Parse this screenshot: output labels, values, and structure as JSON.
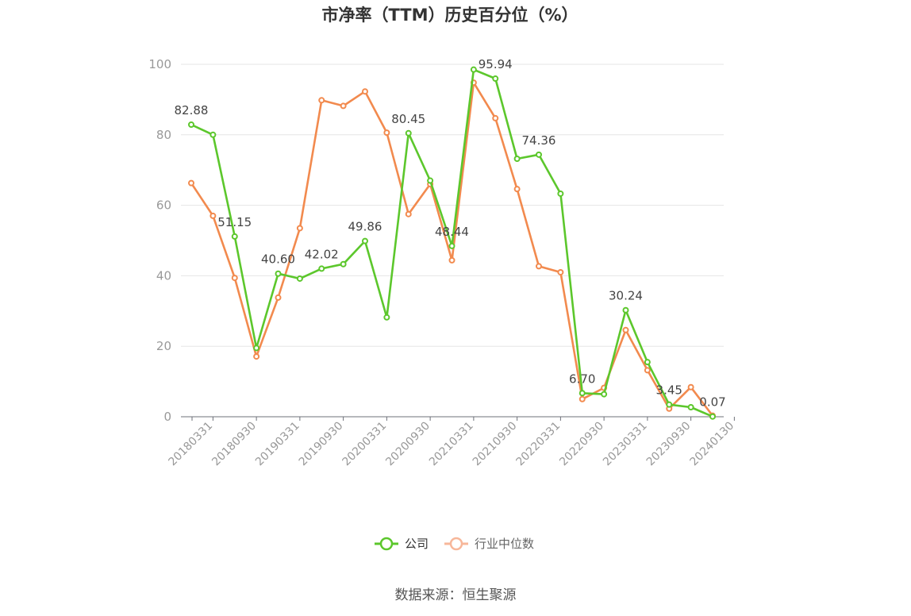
{
  "chart_data": {
    "type": "line",
    "title": "市净率（TTM）历史百分位（%）",
    "xlabel": "",
    "ylabel": "",
    "ylim": [
      0,
      100
    ],
    "yticks": [
      0,
      20,
      40,
      60,
      80,
      100
    ],
    "grid": true,
    "legend_position": "bottom",
    "x": [
      "20180331",
      "20180630",
      "20180930",
      "20181231",
      "20190331",
      "20190630",
      "20190930",
      "20191231",
      "20200331",
      "20200630",
      "20200930",
      "20201231",
      "20210331",
      "20210630",
      "20210930",
      "20211231",
      "20220331",
      "20220630",
      "20220930",
      "20221231",
      "20230331",
      "20230630",
      "20230930",
      "20231231",
      "20240130"
    ],
    "x_tick_labels": [
      "20180331",
      "20180930",
      "20190331",
      "20190930",
      "20200331",
      "20200930",
      "20210331",
      "20210930",
      "20220331",
      "20220930",
      "20230331",
      "20230930",
      "20240130"
    ],
    "series": [
      {
        "name": "公司",
        "color": "#5cc72c",
        "values": [
          82.88,
          80.0,
          51.15,
          19.5,
          40.6,
          39.2,
          42.02,
          43.3,
          49.86,
          28.2,
          80.45,
          67.0,
          48.44,
          98.5,
          95.94,
          73.2,
          74.36,
          63.3,
          6.7,
          6.4,
          30.24,
          15.5,
          3.45,
          2.7,
          0.07
        ],
        "labels": {
          "0": "82.88",
          "2": "51.15",
          "4": "40.60",
          "6": "42.02",
          "8": "49.86",
          "10": "80.45",
          "12": "48.44",
          "14": "95.94",
          "16": "74.36",
          "18": "6.70",
          "20": "30.24",
          "22": "3.45",
          "24": "0.07"
        }
      },
      {
        "name": "行业中位数",
        "color": "#f28a4e",
        "values": [
          66.3,
          57.0,
          39.4,
          17.1,
          33.8,
          53.5,
          89.8,
          88.2,
          92.3,
          80.6,
          57.5,
          66.0,
          44.4,
          94.8,
          84.7,
          64.6,
          42.7,
          41.0,
          5.0,
          8.2,
          24.6,
          13.2,
          2.3,
          8.4,
          0.3
        ],
        "labels": {}
      }
    ],
    "source": "数据来源：恒生聚源"
  }
}
